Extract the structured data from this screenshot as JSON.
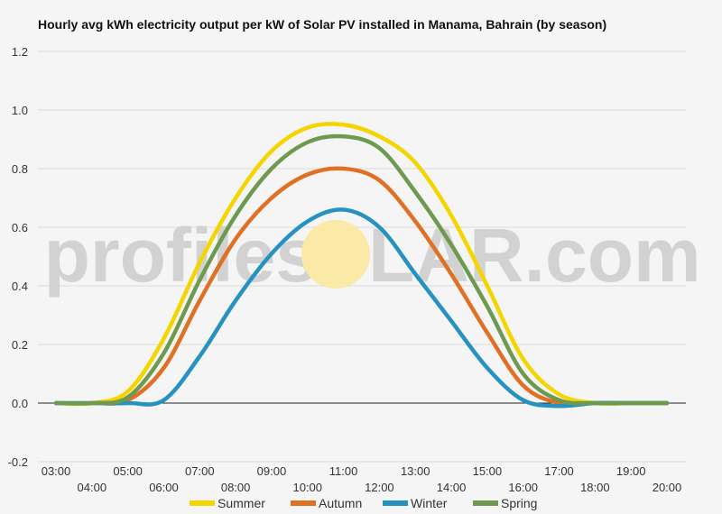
{
  "chart_data": {
    "type": "line",
    "title": "Hourly avg kWh electricity output per kW of Solar PV installed in Manama, Bahrain (by season)",
    "xlabel": "",
    "ylabel": "",
    "ylim": [
      -0.2,
      1.2
    ],
    "yticks": [
      -0.2,
      0.0,
      0.2,
      0.4,
      0.6,
      0.8,
      1.0,
      1.2
    ],
    "ytick_labels": [
      "-0.2",
      "0.0",
      "0.2",
      "0.4",
      "0.6",
      "0.8",
      "1.0",
      "1.2"
    ],
    "x": [
      "03:00",
      "04:00",
      "05:00",
      "06:00",
      "07:00",
      "08:00",
      "09:00",
      "10:00",
      "11:00",
      "12:00",
      "13:00",
      "14:00",
      "15:00",
      "16:00",
      "17:00",
      "18:00",
      "19:00",
      "20:00"
    ],
    "grid": true,
    "legend_position": "bottom",
    "series": [
      {
        "name": "Summer",
        "color": "#f5d500",
        "values": [
          0.0,
          0.0,
          0.04,
          0.22,
          0.48,
          0.7,
          0.86,
          0.94,
          0.95,
          0.91,
          0.82,
          0.64,
          0.4,
          0.15,
          0.03,
          0.0,
          0.0,
          0.0
        ]
      },
      {
        "name": "Autumn",
        "color": "#e07024",
        "values": [
          0.0,
          0.0,
          0.01,
          0.12,
          0.35,
          0.56,
          0.7,
          0.78,
          0.8,
          0.76,
          0.62,
          0.44,
          0.24,
          0.06,
          0.0,
          0.0,
          0.0,
          0.0
        ]
      },
      {
        "name": "Winter",
        "color": "#2592c1",
        "values": [
          0.0,
          0.0,
          0.0,
          0.01,
          0.16,
          0.35,
          0.51,
          0.62,
          0.66,
          0.6,
          0.44,
          0.28,
          0.12,
          0.01,
          -0.01,
          0.0,
          0.0,
          0.0
        ]
      },
      {
        "name": "Spring",
        "color": "#6d9a4f",
        "values": [
          0.0,
          0.0,
          0.02,
          0.17,
          0.42,
          0.64,
          0.8,
          0.89,
          0.91,
          0.87,
          0.72,
          0.54,
          0.33,
          0.1,
          0.01,
          0.0,
          0.0,
          0.0
        ]
      }
    ]
  },
  "watermark": {
    "left": "profiles",
    "right": "LAR.com",
    "sun_color": "#fbe9a8"
  }
}
